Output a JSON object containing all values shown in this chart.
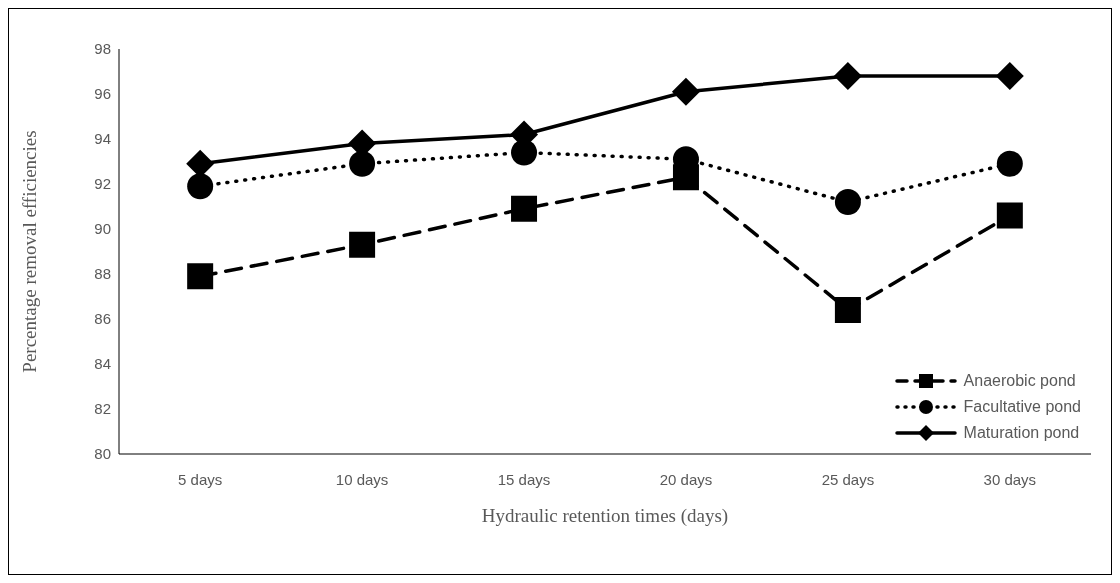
{
  "chart_data": {
    "type": "line",
    "xlabel": "Hydraulic retention times (days)",
    "ylabel": "Percentage removal efficiencies",
    "categories": [
      "5 days",
      "10 days",
      "15 days",
      "20 days",
      "25 days",
      "30 days"
    ],
    "series": [
      {
        "name": "Anaerobic pond",
        "color": "#000000",
        "marker": "square",
        "line_style": "dashed",
        "values": [
          87.9,
          89.3,
          90.9,
          92.3,
          86.4,
          90.6
        ]
      },
      {
        "name": "Facultative pond",
        "color": "#000000",
        "marker": "circle",
        "line_style": "dotted",
        "values": [
          91.9,
          92.9,
          93.4,
          93.1,
          91.2,
          92.9
        ]
      },
      {
        "name": "Maturation pond",
        "color": "#000000",
        "marker": "diamond",
        "line_style": "solid",
        "values": [
          92.9,
          93.8,
          94.2,
          96.1,
          96.8,
          96.8
        ]
      }
    ],
    "ylim": [
      80,
      98
    ],
    "yticks": [
      80,
      82,
      84,
      86,
      88,
      90,
      92,
      94,
      96,
      98
    ],
    "grid": false,
    "legend": "bottom right"
  }
}
